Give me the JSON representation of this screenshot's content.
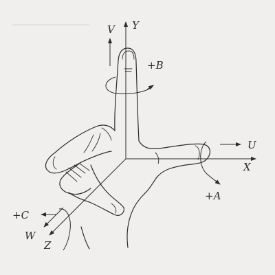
{
  "axes": {
    "x": "X",
    "y": "Y",
    "z": "Z"
  },
  "translations": {
    "u": "U",
    "v": "V",
    "w": "W"
  },
  "rotations": {
    "a": "+A",
    "b": "+B",
    "c": "+C"
  },
  "colors": {
    "background": "#f0efed",
    "ink": "#2b2b2b"
  }
}
